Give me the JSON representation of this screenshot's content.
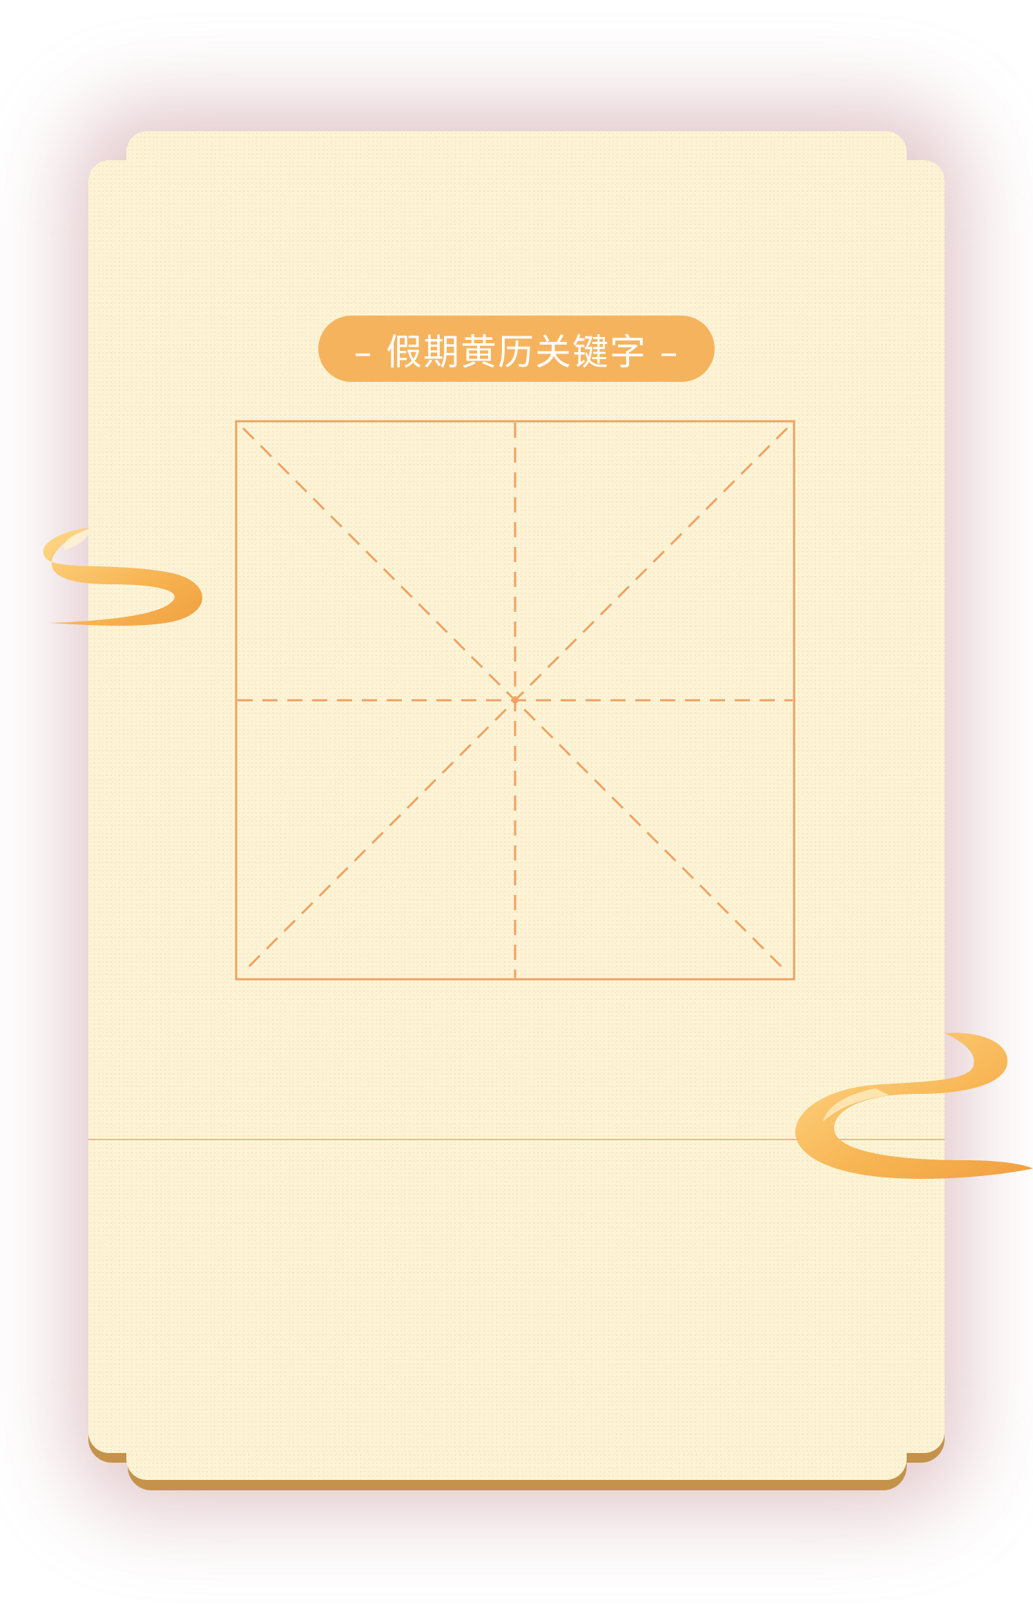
{
  "card": {
    "title": "– 假期黄历关键字 –"
  },
  "practice_grid": {
    "style": "mizi-ge (米字格) dashed guide grid"
  },
  "colors": {
    "card_background": "#fdf4d6",
    "accent_orange": "#f6b35e",
    "grid_line": "#f0a060",
    "card_shadow_edge": "#c4924a",
    "glow": "#c99aa0"
  },
  "decorations": {
    "left": "cloud-swirl-icon",
    "right": "cloud-swirl-icon"
  }
}
